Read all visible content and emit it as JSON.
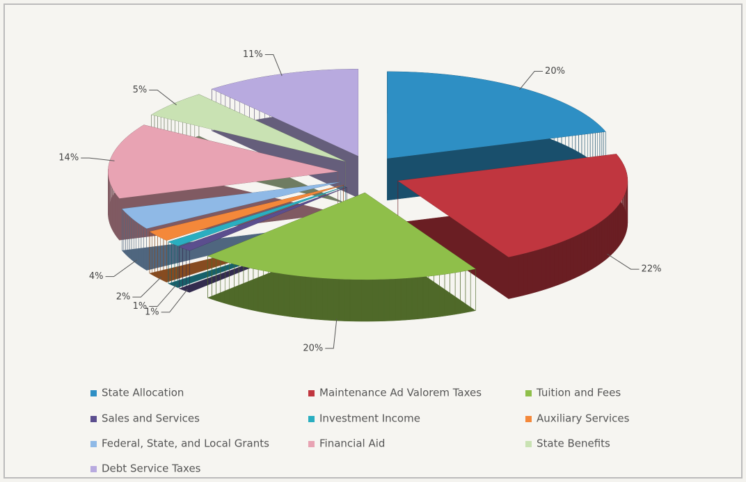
{
  "chart_data": {
    "type": "pie",
    "categories": [
      "State Allocation",
      "Maintenance Ad Valorem Taxes",
      "Tuition and Fees",
      "Sales and Services",
      "Investment Income",
      "Auxiliary Services",
      "Federal, State, and Local Grants",
      "Financial Aid",
      "State Benefits",
      "Debt Service Taxes"
    ],
    "values": [
      20,
      22,
      20,
      1,
      1,
      2,
      4,
      14,
      5,
      11
    ],
    "value_labels": [
      "20%",
      "22%",
      "20%",
      "1%",
      "1%",
      "2%",
      "4%",
      "14%",
      "5%",
      "11%"
    ],
    "colors": [
      "#2e8fc4",
      "#c0363f",
      "#8fbf4a",
      "#5b4e8e",
      "#2aaec0",
      "#f4883a",
      "#8fb9e6",
      "#e8a3b3",
      "#c9e2b3",
      "#b8aadf"
    ]
  }
}
